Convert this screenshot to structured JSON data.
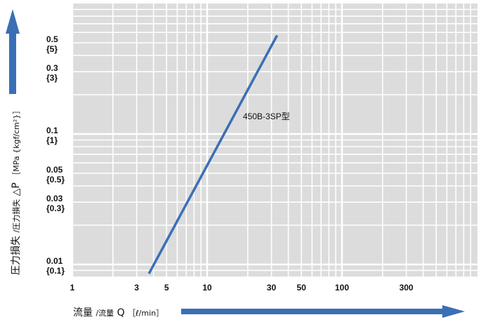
{
  "chart_data": {
    "type": "line",
    "x_scale": "log",
    "y_scale": "log",
    "xlim": [
      1,
      1000
    ],
    "ylim": [
      0.008,
      1
    ],
    "grid": true,
    "colors": {
      "plot_background": "#dcdcdc",
      "grid": "#ffffff",
      "series": "#3b6fb5",
      "axis_arrow": "#3b6fb5"
    },
    "x_ticks": [
      {
        "value": 1,
        "label": "1"
      },
      {
        "value": 3,
        "label": "3"
      },
      {
        "value": 5,
        "label": "5"
      },
      {
        "value": 10,
        "label": "10"
      },
      {
        "value": 30,
        "label": "30"
      },
      {
        "value": 50,
        "label": "50"
      },
      {
        "value": 100,
        "label": "100"
      },
      {
        "value": 300,
        "label": "300"
      }
    ],
    "y_ticks": [
      {
        "value": 0.5,
        "label": "0.5",
        "sublabel": "{5}"
      },
      {
        "value": 0.3,
        "label": "0.3",
        "sublabel": "{3}"
      },
      {
        "value": 0.1,
        "label": "0.1",
        "sublabel": "{1}"
      },
      {
        "value": 0.05,
        "label": "0.05",
        "sublabel": "{0.5}"
      },
      {
        "value": 0.03,
        "label": "0.03",
        "sublabel": "{0.3}"
      },
      {
        "value": 0.01,
        "label": "0.01",
        "sublabel": "{0.1}"
      }
    ],
    "xlabel": {
      "main": "流量",
      "sub": "/流量",
      "symbol": "Q",
      "unit": "［ℓ/min］"
    },
    "ylabel": {
      "main": "圧力損失",
      "sub": "/圧力損失",
      "symbol": "△P",
      "unit": "［MPa {kgf/cm²}］"
    },
    "series": [
      {
        "name": "450B-3SP型",
        "x": [
          3.7,
          33
        ],
        "y": [
          0.0085,
          0.57
        ]
      }
    ]
  }
}
